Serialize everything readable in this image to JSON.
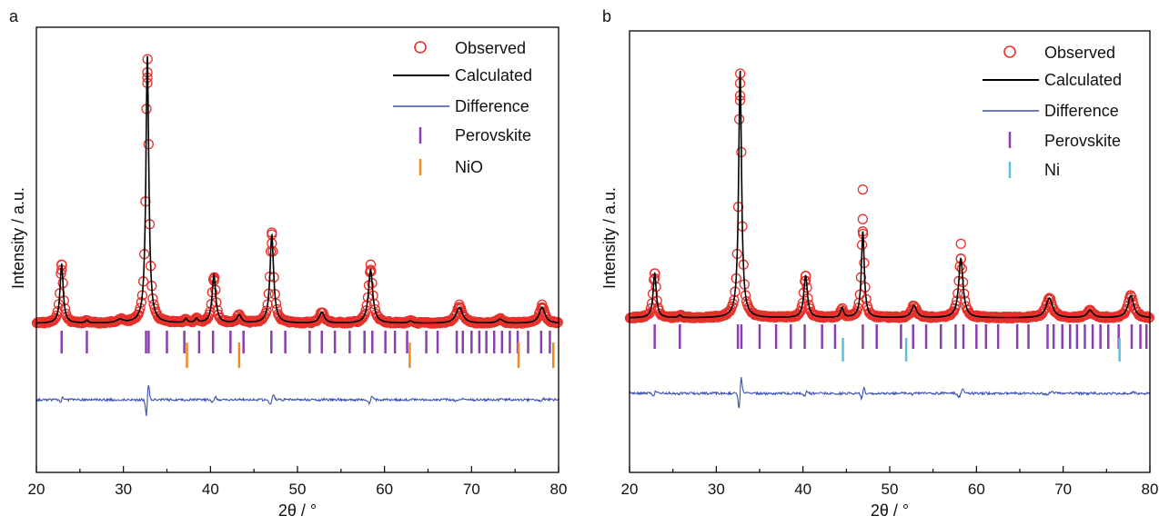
{
  "chart_data": [
    {
      "panel_label": "a",
      "type": "line",
      "xlabel": "2θ / °",
      "ylabel": "Intensity / a.u.",
      "xlim": [
        20,
        80
      ],
      "xticks": [
        20,
        30,
        40,
        50,
        60,
        70,
        80
      ],
      "yticks_shown": false,
      "legend_position": "top-right",
      "legend": [
        "Observed",
        "Calculated",
        "Difference",
        "Perovskite",
        "NiO"
      ],
      "colors": {
        "observed": "#e8302a",
        "calculated": "#000000",
        "difference": "#3b4fb0",
        "perovskite": "#8a3fb0",
        "phase2": "#f08a1e"
      },
      "peaks": [
        {
          "x": 22.9,
          "h": 0.22,
          "w": 0.22
        },
        {
          "x": 25.8,
          "h": 0.01,
          "w": 0.2
        },
        {
          "x": 29.6,
          "h": 0.012,
          "w": 0.5
        },
        {
          "x": 32.75,
          "h": 1.0,
          "w": 0.2
        },
        {
          "x": 37.2,
          "h": 0.015,
          "w": 0.2
        },
        {
          "x": 38.4,
          "h": 0.015,
          "w": 0.2
        },
        {
          "x": 40.4,
          "h": 0.18,
          "w": 0.25
        },
        {
          "x": 43.3,
          "h": 0.03,
          "w": 0.3
        },
        {
          "x": 47.05,
          "h": 0.33,
          "w": 0.25
        },
        {
          "x": 52.8,
          "h": 0.04,
          "w": 0.35
        },
        {
          "x": 58.4,
          "h": 0.2,
          "w": 0.3
        },
        {
          "x": 63.0,
          "h": 0.008,
          "w": 0.3
        },
        {
          "x": 68.6,
          "h": 0.06,
          "w": 0.45
        },
        {
          "x": 73.3,
          "h": 0.015,
          "w": 0.4
        },
        {
          "x": 78.1,
          "h": 0.06,
          "w": 0.4
        }
      ],
      "observed_markers": [
        [
          22.9,
          [
            0.2,
            0.22
          ]
        ],
        [
          32.75,
          [
            0.9,
            0.92,
            0.94
          ]
        ],
        [
          40.4,
          [
            0.16,
            0.17
          ]
        ],
        [
          47.05,
          [
            0.3,
            0.34
          ]
        ],
        [
          58.4,
          [
            0.2,
            0.22
          ]
        ],
        [
          68.6,
          [
            0.06,
            0.07
          ]
        ],
        [
          78.1,
          [
            0.06,
            0.07
          ]
        ]
      ],
      "perovskite_ticks": [
        22.9,
        25.8,
        32.6,
        32.9,
        35.0,
        37.0,
        38.7,
        40.3,
        42.3,
        43.8,
        47.0,
        48.6,
        51.4,
        52.8,
        54.3,
        56.0,
        57.7,
        58.6,
        60.1,
        61.2,
        62.6,
        64.8,
        66.1,
        68.3,
        69.0,
        70.0,
        70.9,
        71.7,
        72.6,
        73.5,
        74.4,
        75.3,
        76.5,
        78.0,
        79.0
      ],
      "phase2_ticks": [
        37.3,
        43.3,
        62.9,
        75.4,
        79.4
      ]
    },
    {
      "panel_label": "b",
      "type": "line",
      "xlabel": "2θ / °",
      "ylabel": "Intensity / a.u.",
      "xlim": [
        20,
        80
      ],
      "xticks": [
        20,
        30,
        40,
        50,
        60,
        70,
        80
      ],
      "yticks_shown": false,
      "legend_position": "top-right",
      "legend": [
        "Observed",
        "Calculated",
        "Difference",
        "Perovskite",
        "Ni"
      ],
      "colors": {
        "observed": "#e8302a",
        "calculated": "#000000",
        "difference": "#3b4fb0",
        "perovskite": "#8a3fb0",
        "phase2": "#5bc0de"
      },
      "peaks": [
        {
          "x": 22.9,
          "h": 0.18,
          "w": 0.22
        },
        {
          "x": 25.8,
          "h": 0.01,
          "w": 0.2
        },
        {
          "x": 32.75,
          "h": 1.0,
          "w": 0.2
        },
        {
          "x": 40.3,
          "h": 0.17,
          "w": 0.25
        },
        {
          "x": 44.5,
          "h": 0.04,
          "w": 0.2
        },
        {
          "x": 46.9,
          "h": 0.35,
          "w": 0.2
        },
        {
          "x": 52.8,
          "h": 0.05,
          "w": 0.35
        },
        {
          "x": 58.2,
          "h": 0.24,
          "w": 0.3
        },
        {
          "x": 68.4,
          "h": 0.08,
          "w": 0.45
        },
        {
          "x": 73.1,
          "h": 0.03,
          "w": 0.4
        },
        {
          "x": 77.8,
          "h": 0.09,
          "w": 0.4
        }
      ],
      "observed_markers": [
        [
          22.9,
          [
            0.16,
            0.18
          ]
        ],
        [
          32.75,
          [
            0.88,
            0.9,
            0.95
          ]
        ],
        [
          40.3,
          [
            0.15,
            0.17
          ]
        ],
        [
          46.9,
          [
            0.35,
            0.4,
            0.52
          ]
        ],
        [
          58.2,
          [
            0.24,
            0.3
          ]
        ],
        [
          68.4,
          [
            0.08
          ]
        ],
        [
          77.8,
          [
            0.09
          ]
        ]
      ],
      "perovskite_ticks": [
        22.9,
        25.8,
        32.5,
        32.9,
        35.0,
        36.9,
        38.6,
        40.2,
        42.2,
        43.7,
        46.9,
        48.5,
        51.3,
        52.7,
        54.2,
        55.9,
        57.6,
        58.5,
        60.0,
        61.1,
        62.5,
        64.7,
        66.0,
        68.2,
        68.9,
        69.9,
        70.8,
        71.6,
        72.5,
        73.4,
        74.3,
        75.2,
        76.4,
        77.9,
        78.9,
        79.6
      ],
      "phase2_ticks": [
        44.6,
        51.9,
        76.5
      ]
    }
  ]
}
